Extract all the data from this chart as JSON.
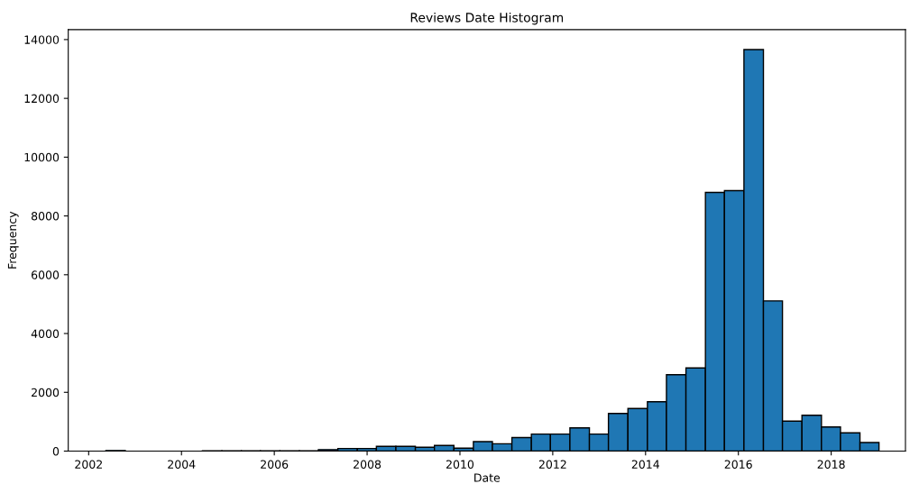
{
  "chart_data": {
    "type": "histogram",
    "title": "Reviews Date Histogram",
    "xlabel": "Date",
    "ylabel": "Frequency",
    "color": "#1f77b4",
    "bins": [
      2002.37,
      2002.79,
      2004.45,
      2004.87,
      2005.29,
      2005.7,
      2006.12,
      2006.54,
      2006.95,
      2007.37,
      2007.79,
      2008.2,
      2008.62,
      2009.04,
      2009.45,
      2009.87,
      2010.29,
      2010.7,
      2011.12,
      2011.54,
      2011.95,
      2012.37,
      2012.79,
      2013.2,
      2013.62,
      2014.04,
      2014.45,
      2014.87,
      2015.29,
      2015.7,
      2016.12,
      2016.54,
      2016.95,
      2017.37,
      2017.79,
      2018.2,
      2018.62,
      2019.03
    ],
    "values": [
      20,
      0,
      10,
      10,
      10,
      10,
      10,
      10,
      50,
      90,
      90,
      160,
      160,
      130,
      190,
      100,
      320,
      250,
      460,
      580,
      580,
      790,
      580,
      1280,
      1450,
      1680,
      2600,
      2830,
      8800,
      8860,
      13660,
      5110,
      1020,
      1220,
      820,
      620,
      290
    ],
    "xlim": [
      2001.56,
      2019.6
    ],
    "xticks": [
      2002,
      2004,
      2006,
      2008,
      2010,
      2012,
      2014,
      2016,
      2018
    ],
    "ylim": [
      0,
      14340
    ],
    "yticks": [
      0,
      2000,
      4000,
      6000,
      8000,
      10000,
      12000,
      14000
    ],
    "grid": false
  }
}
